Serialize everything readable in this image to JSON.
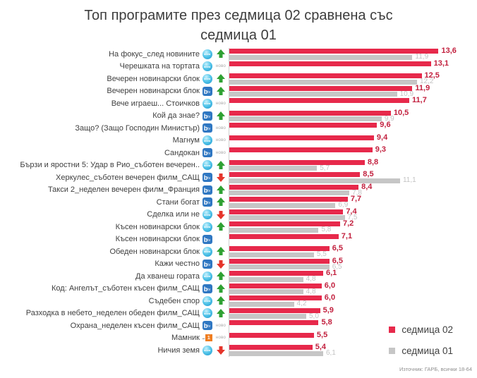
{
  "title": "Топ програмите през седмица 02 сравнена със\nседмица 01",
  "source": "Източник: ГАРБ, всички 18-64",
  "colors": {
    "week02": "#e7294b",
    "week01": "#c6c6c6",
    "up_arrow": "#2fa133",
    "down_arrow": "#e5352b"
  },
  "labels": {
    "new_badge": "ново"
  },
  "channels": {
    "nova_label": "nova",
    "btv_b": "b",
    "btv_tv": "tv",
    "bnt1_dots": "...",
    "bnt1_one": "1"
  },
  "legend": [
    {
      "label": "седмица 02",
      "color": "#e7294b"
    },
    {
      "label": "седмица 01",
      "color": "#c6c6c6"
    }
  ],
  "chart_data": {
    "type": "bar",
    "orientation": "horizontal",
    "title": "Топ програмите през седмица 02 сравнена със седмица 01",
    "series_names": [
      "седмица 02",
      "седмица 01"
    ],
    "value_range": [
      0,
      16
    ],
    "grid": false,
    "legend_position": "bottom-right",
    "rows": [
      {
        "label": "На фокус_след новините",
        "channel": "nova",
        "trend": "up",
        "week02": 13.6,
        "week02_label": "13,6",
        "week01": 11.9,
        "week01_label": "11,9"
      },
      {
        "label": "Черешката на тортата",
        "channel": "nova",
        "trend": "new",
        "week02": 13.1,
        "week02_label": "13,1",
        "week01": null,
        "week01_label": null
      },
      {
        "label": "Вечерен новинарски блок",
        "channel": "nova",
        "trend": "up",
        "week02": 12.5,
        "week02_label": "12,5",
        "week01": 12.2,
        "week01_label": "12,2"
      },
      {
        "label": "Вечерен новинарски блок",
        "channel": "btv",
        "trend": "up",
        "week02": 11.9,
        "week02_label": "11,9",
        "week01": 10.9,
        "week01_label": "10,9"
      },
      {
        "label": "Вече играеш... Стоичков",
        "channel": "nova",
        "trend": "new",
        "week02": 11.7,
        "week02_label": "11,7",
        "week01": null,
        "week01_label": null
      },
      {
        "label": "Кой да знае?",
        "channel": "btv",
        "trend": "up",
        "week02": 10.5,
        "week02_label": "10,5",
        "week01": 9.9,
        "week01_label": "9,9"
      },
      {
        "label": "Защо? (Защо Господин Министър)",
        "channel": "btv",
        "trend": "new",
        "week02": 9.6,
        "week02_label": "9,6",
        "week01": null,
        "week01_label": null
      },
      {
        "label": "Магнум",
        "channel": "nova",
        "trend": "new",
        "week02": 9.4,
        "week02_label": "9,4",
        "week01": null,
        "week01_label": null
      },
      {
        "label": "Сандокан",
        "channel": "btv",
        "trend": "new",
        "week02": 9.3,
        "week02_label": "9,3",
        "week01": null,
        "week01_label": null
      },
      {
        "label": "Бързи и яростни 5: Удар в Рио_съботен вечерен..",
        "channel": "nova",
        "trend": "up",
        "week02": 8.8,
        "week02_label": "8,8",
        "week01": 5.7,
        "week01_label": "5,7"
      },
      {
        "label": "Херкулес_съботен вечерен филм_САЩ",
        "channel": "btv",
        "trend": "down",
        "week02": 8.5,
        "week02_label": "8,5",
        "week01": 11.1,
        "week01_label": "11,1"
      },
      {
        "label": "Такси 2_неделен вечерен филм_Франция",
        "channel": "btv",
        "trend": "up",
        "week02": 8.4,
        "week02_label": "8,4",
        "week01": 7.8,
        "week01_label": "7,8"
      },
      {
        "label": "Стани богат",
        "channel": "btv",
        "trend": "up",
        "week02": 7.7,
        "week02_label": "7,7",
        "week01": 6.9,
        "week01_label": "6,9"
      },
      {
        "label": "Сделка или не",
        "channel": "nova",
        "trend": "down",
        "week02": 7.4,
        "week02_label": "7,4",
        "week01": 7.5,
        "week01_label": "7,5"
      },
      {
        "label": "Късен новинарски блок",
        "channel": "nova",
        "trend": "up",
        "week02": 7.2,
        "week02_label": "7,2",
        "week01": 5.8,
        "week01_label": "5,8"
      },
      {
        "label": "Късен новинарски блок",
        "channel": "btv",
        "trend": "none",
        "week02": 7.1,
        "week02_label": "7,1",
        "week01": null,
        "week01_label": null
      },
      {
        "label": "Обеден новинарски блок",
        "channel": "nova",
        "trend": "up",
        "week02": 6.5,
        "week02_label": "6,5",
        "week01": 5.5,
        "week01_label": "5,5"
      },
      {
        "label": "Кажи честно",
        "channel": "btv",
        "trend": "down",
        "week02": 6.5,
        "week02_label": "6,5",
        "week01": 6.5,
        "week01_label": "6,5"
      },
      {
        "label": "Да хванеш гората",
        "channel": "nova",
        "trend": "up",
        "week02": 6.1,
        "week02_label": "6,1",
        "week01": 4.8,
        "week01_label": "4,8"
      },
      {
        "label": "Код: Ангелът_съботен късен филм_САЩ",
        "channel": "btv",
        "trend": "up",
        "week02": 6.0,
        "week02_label": "6,0",
        "week01": 4.8,
        "week01_label": "4,8"
      },
      {
        "label": "Съдебен спор",
        "channel": "nova",
        "trend": "up",
        "week02": 6.0,
        "week02_label": "6,0",
        "week01": 4.2,
        "week01_label": "4,2"
      },
      {
        "label": "Разходка в небето_неделен обеден филм_САЩ",
        "channel": "nova",
        "trend": "up",
        "week02": 5.9,
        "week02_label": "5,9",
        "week01": 5.0,
        "week01_label": "5,0"
      },
      {
        "label": "Охрана_неделен късен филм_САЩ",
        "channel": "btv",
        "trend": "new",
        "week02": 5.8,
        "week02_label": "5,8",
        "week01": null,
        "week01_label": null
      },
      {
        "label": "Мамник",
        "channel": "bnt1",
        "trend": "new",
        "week02": 5.5,
        "week02_label": "5,5",
        "week01": null,
        "week01_label": null
      },
      {
        "label": "Ничия земя",
        "channel": "nova",
        "trend": "down",
        "week02": 5.4,
        "week02_label": "5,4",
        "week01": 6.1,
        "week01_label": "6,1"
      }
    ]
  }
}
